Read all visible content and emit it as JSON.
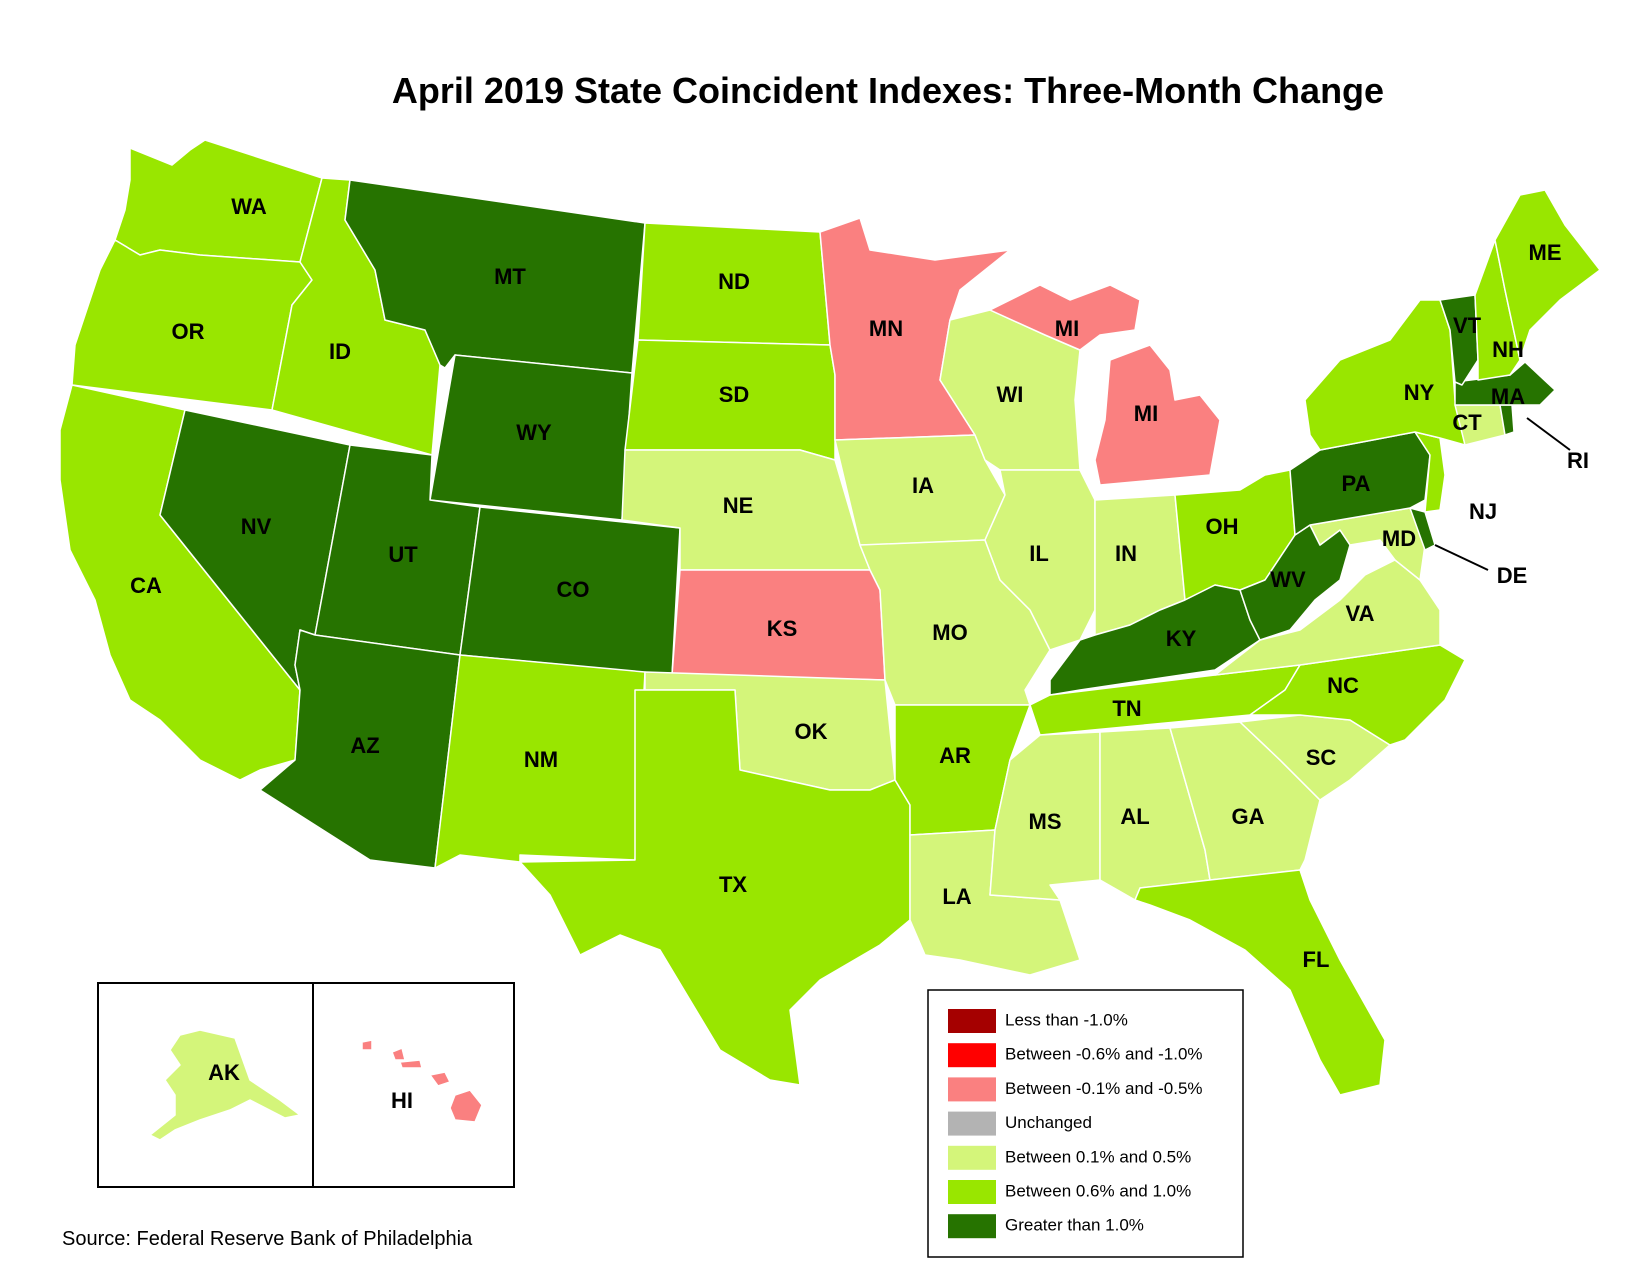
{
  "title": "April 2019 State Coincident Indexes: Three-Month Change",
  "source": "Source: Federal Reserve Bank of Philadelphia",
  "legend": [
    {
      "label": "Less than -1.0%",
      "color": "#a50000"
    },
    {
      "label": "Between -0.6% and -1.0%",
      "color": "#ff0000"
    },
    {
      "label": "Between -0.1% and -0.5%",
      "color": "#fa8080"
    },
    {
      "label": "Unchanged",
      "color": "#b3b3b3"
    },
    {
      "label": "Between 0.1% and 0.5%",
      "color": "#d4f57a"
    },
    {
      "label": "Between 0.6% and 1.0%",
      "color": "#99e600"
    },
    {
      "label": "Greater than 1.0%",
      "color": "#267300"
    }
  ],
  "states": {
    "WA": "Between 0.6% and 1.0%",
    "OR": "Between 0.6% and 1.0%",
    "CA": "Between 0.6% and 1.0%",
    "ID": "Between 0.6% and 1.0%",
    "NV": "Greater than 1.0%",
    "MT": "Greater than 1.0%",
    "WY": "Greater than 1.0%",
    "UT": "Greater than 1.0%",
    "CO": "Greater than 1.0%",
    "AZ": "Greater than 1.0%",
    "NM": "Between 0.6% and 1.0%",
    "ND": "Between 0.6% and 1.0%",
    "SD": "Between 0.6% and 1.0%",
    "NE": "Between 0.1% and 0.5%",
    "KS": "Between -0.1% and -0.5%",
    "OK": "Between 0.1% and 0.5%",
    "TX": "Between 0.6% and 1.0%",
    "MN": "Between -0.1% and -0.5%",
    "IA": "Between 0.1% and 0.5%",
    "MO": "Between 0.1% and 0.5%",
    "AR": "Between 0.6% and 1.0%",
    "LA": "Between 0.1% and 0.5%",
    "WI": "Between 0.1% and 0.5%",
    "IL": "Between 0.1% and 0.5%",
    "MI": "Between -0.1% and -0.5%",
    "IN": "Between 0.1% and 0.5%",
    "OH": "Between 0.6% and 1.0%",
    "KY": "Greater than 1.0%",
    "TN": "Between 0.6% and 1.0%",
    "MS": "Between 0.1% and 0.5%",
    "AL": "Between 0.1% and 0.5%",
    "GA": "Between 0.1% and 0.5%",
    "FL": "Between 0.6% and 1.0%",
    "SC": "Between 0.1% and 0.5%",
    "NC": "Between 0.6% and 1.0%",
    "VA": "Between 0.1% and 0.5%",
    "WV": "Greater than 1.0%",
    "MD": "Between 0.1% and 0.5%",
    "DE": "Greater than 1.0%",
    "PA": "Greater than 1.0%",
    "NJ": "Between 0.6% and 1.0%",
    "NY": "Between 0.6% and 1.0%",
    "CT": "Between 0.1% and 0.5%",
    "RI": "Greater than 1.0%",
    "MA": "Greater than 1.0%",
    "VT": "Greater than 1.0%",
    "NH": "Between 0.6% and 1.0%",
    "ME": "Between 0.6% and 1.0%",
    "AK": "Between 0.1% and 0.5%",
    "HI": "Between -0.1% and -0.5%"
  }
}
